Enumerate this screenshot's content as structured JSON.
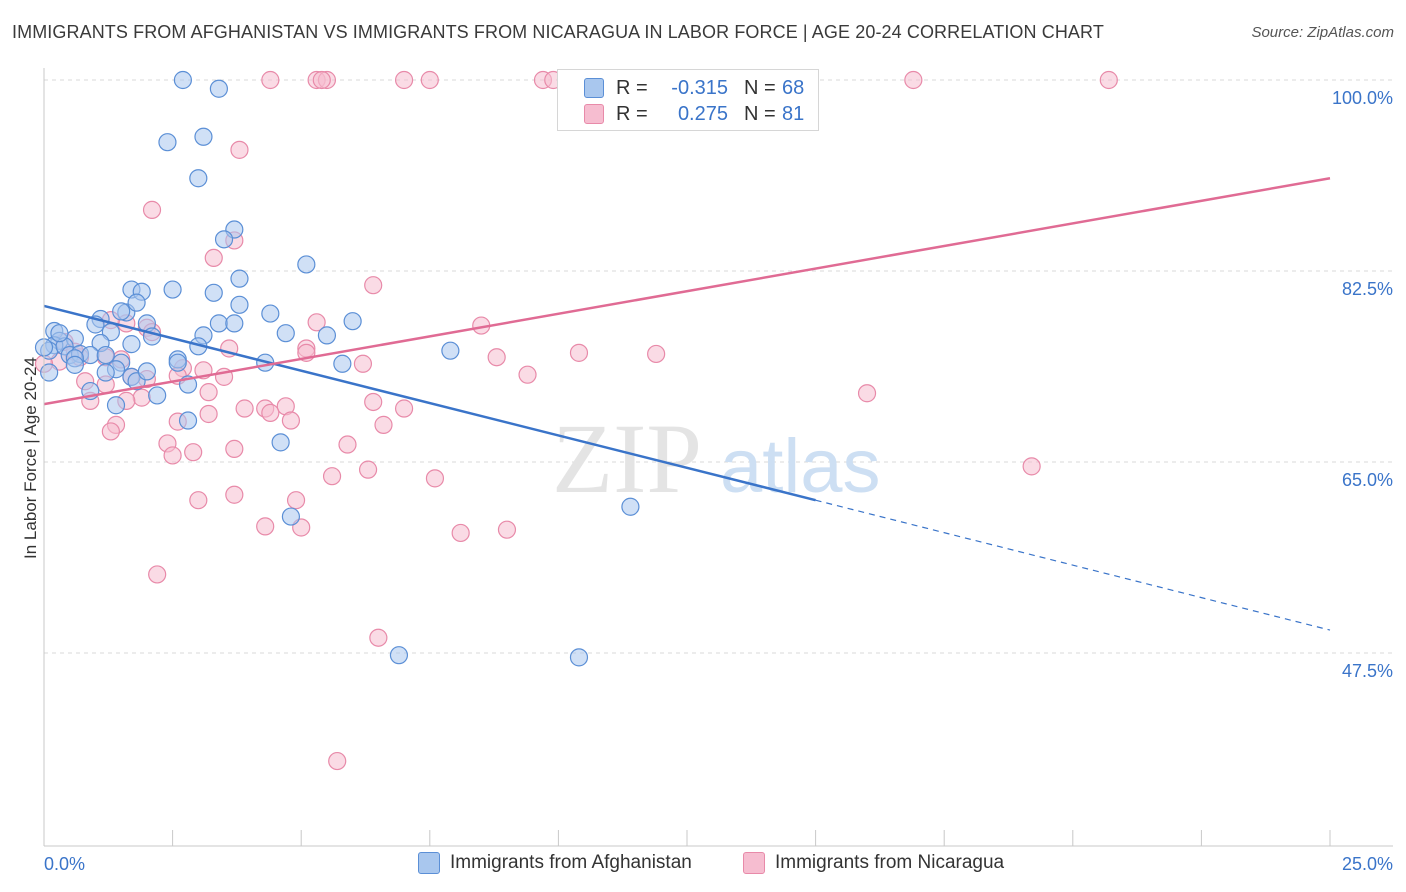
{
  "header": {
    "title": "IMMIGRANTS FROM AFGHANISTAN VS IMMIGRANTS FROM NICARAGUA IN LABOR FORCE | AGE 20-24 CORRELATION CHART",
    "source": "Source: ZipAtlas.com"
  },
  "legend": {
    "r_label": "R =",
    "n_label": "N =",
    "rows": [
      {
        "r": "-0.315",
        "n": "68"
      },
      {
        "r": "0.275",
        "n": "81"
      }
    ]
  },
  "watermark": {
    "zip": "ZIP",
    "atlas": "atlas"
  },
  "colors": {
    "afghanistan_fill": "#a9c7ee",
    "afghanistan_stroke": "#5b8fd6",
    "afghanistan_line": "#3a74c9",
    "nicaragua_fill": "#f6bdd0",
    "nicaragua_stroke": "#e88aa9",
    "nicaragua_line": "#e06b94",
    "tick_label": "#3a74c9",
    "grid": "#d8d8d8"
  },
  "chart_data": {
    "type": "scatter",
    "title": "IMMIGRANTS FROM AFGHANISTAN VS IMMIGRANTS FROM NICARAGUA IN LABOR FORCE | AGE 20-24 CORRELATION CHART",
    "xlabel": "",
    "ylabel": "In Labor Force | Age 20-24",
    "xlim": [
      0,
      25
    ],
    "ylim": [
      30,
      102
    ],
    "x_tick_labels": [
      "0.0%",
      "25.0%"
    ],
    "y_ticks": [
      47.5,
      65.0,
      82.5,
      100.0
    ],
    "y_tick_labels": [
      "47.5%",
      "65.0%",
      "82.5%",
      "100.0%"
    ],
    "grid": true,
    "legend_position": "bottom",
    "series": [
      {
        "name": "Immigrants from Afghanistan",
        "trend": {
          "x": [
            0,
            15.0
          ],
          "y": [
            79.3,
            61.5
          ]
        },
        "trend_extension": {
          "x": [
            15.0,
            25.0
          ],
          "y": [
            61.5,
            49.6
          ]
        },
        "points": [
          [
            2.7,
            100.0
          ],
          [
            3.4,
            99.2
          ],
          [
            2.4,
            94.3
          ],
          [
            3.1,
            94.8
          ],
          [
            3.0,
            91.0
          ],
          [
            3.7,
            86.3
          ],
          [
            3.5,
            85.4
          ],
          [
            5.1,
            83.1
          ],
          [
            3.8,
            81.8
          ],
          [
            2.5,
            80.8
          ],
          [
            1.7,
            80.8
          ],
          [
            1.9,
            80.6
          ],
          [
            3.3,
            80.5
          ],
          [
            3.8,
            79.4
          ],
          [
            1.6,
            78.7
          ],
          [
            1.5,
            78.8
          ],
          [
            4.4,
            78.6
          ],
          [
            1.1,
            78.1
          ],
          [
            1.0,
            77.6
          ],
          [
            2.0,
            77.7
          ],
          [
            3.4,
            77.7
          ],
          [
            3.7,
            77.7
          ],
          [
            6.0,
            77.9
          ],
          [
            0.2,
            77.0
          ],
          [
            1.3,
            76.9
          ],
          [
            4.7,
            76.8
          ],
          [
            3.1,
            76.6
          ],
          [
            5.5,
            76.6
          ],
          [
            2.1,
            76.5
          ],
          [
            0.3,
            76.1
          ],
          [
            0.6,
            76.3
          ],
          [
            0.2,
            75.7
          ],
          [
            0.1,
            75.2
          ],
          [
            1.7,
            75.8
          ],
          [
            0.4,
            75.6
          ],
          [
            1.1,
            75.9
          ],
          [
            3.0,
            75.6
          ],
          [
            0.5,
            74.8
          ],
          [
            0.7,
            74.9
          ],
          [
            0.9,
            74.8
          ],
          [
            0.6,
            74.5
          ],
          [
            1.2,
            74.8
          ],
          [
            7.9,
            75.2
          ],
          [
            2.6,
            74.4
          ],
          [
            4.3,
            74.1
          ],
          [
            2.6,
            74.1
          ],
          [
            1.5,
            74.1
          ],
          [
            0.6,
            73.9
          ],
          [
            1.4,
            73.5
          ],
          [
            1.2,
            73.2
          ],
          [
            0.1,
            73.2
          ],
          [
            1.7,
            72.8
          ],
          [
            1.8,
            72.4
          ],
          [
            2.8,
            72.1
          ],
          [
            0.9,
            71.5
          ],
          [
            2.2,
            71.1
          ],
          [
            1.4,
            70.2
          ],
          [
            2.8,
            68.8
          ],
          [
            4.6,
            66.8
          ],
          [
            4.8,
            60.0
          ],
          [
            11.4,
            60.9
          ],
          [
            6.9,
            47.3
          ],
          [
            10.4,
            47.1
          ],
          [
            0.0,
            75.5
          ],
          [
            0.3,
            76.8
          ],
          [
            2.0,
            73.3
          ],
          [
            5.8,
            74.0
          ],
          [
            1.8,
            79.6
          ]
        ]
      },
      {
        "name": "Immigrants from Nicaragua",
        "trend": {
          "x": [
            0,
            25.0
          ],
          "y": [
            70.3,
            91.0
          ]
        },
        "points": [
          [
            4.4,
            100.0
          ],
          [
            5.3,
            100.0
          ],
          [
            5.5,
            100.0
          ],
          [
            7.0,
            100.0
          ],
          [
            7.5,
            100.0
          ],
          [
            9.7,
            100.0
          ],
          [
            9.9,
            100.0
          ],
          [
            12.2,
            100.0
          ],
          [
            16.9,
            100.0
          ],
          [
            20.7,
            100.0
          ],
          [
            5.4,
            100.0
          ],
          [
            3.8,
            93.6
          ],
          [
            2.1,
            88.1
          ],
          [
            3.7,
            85.3
          ],
          [
            3.3,
            83.7
          ],
          [
            6.4,
            81.2
          ],
          [
            5.3,
            77.8
          ],
          [
            8.5,
            77.5
          ],
          [
            1.6,
            77.7
          ],
          [
            2.0,
            77.3
          ],
          [
            2.1,
            76.9
          ],
          [
            0.4,
            76.0
          ],
          [
            3.6,
            75.4
          ],
          [
            5.1,
            75.4
          ],
          [
            8.8,
            74.6
          ],
          [
            10.4,
            75.0
          ],
          [
            6.2,
            74.0
          ],
          [
            0.3,
            74.2
          ],
          [
            1.5,
            74.4
          ],
          [
            0.7,
            74.6
          ],
          [
            1.2,
            74.6
          ],
          [
            0.6,
            75.1
          ],
          [
            2.7,
            73.6
          ],
          [
            3.1,
            73.4
          ],
          [
            2.6,
            72.9
          ],
          [
            1.7,
            72.8
          ],
          [
            3.5,
            72.8
          ],
          [
            2.0,
            72.6
          ],
          [
            9.4,
            73.0
          ],
          [
            0.8,
            72.4
          ],
          [
            1.2,
            72.1
          ],
          [
            3.2,
            71.4
          ],
          [
            1.9,
            70.9
          ],
          [
            0.9,
            70.6
          ],
          [
            1.6,
            70.6
          ],
          [
            6.4,
            70.5
          ],
          [
            4.3,
            69.9
          ],
          [
            4.7,
            70.1
          ],
          [
            7.0,
            69.9
          ],
          [
            3.9,
            69.9
          ],
          [
            4.4,
            69.5
          ],
          [
            3.2,
            69.4
          ],
          [
            4.8,
            68.8
          ],
          [
            2.6,
            68.7
          ],
          [
            6.6,
            68.4
          ],
          [
            1.4,
            68.4
          ],
          [
            1.3,
            67.8
          ],
          [
            5.9,
            66.6
          ],
          [
            2.4,
            66.7
          ],
          [
            3.7,
            66.2
          ],
          [
            2.9,
            65.9
          ],
          [
            2.5,
            65.6
          ],
          [
            6.3,
            64.3
          ],
          [
            5.6,
            63.7
          ],
          [
            7.6,
            63.5
          ],
          [
            3.7,
            62.0
          ],
          [
            3.0,
            61.5
          ],
          [
            4.9,
            61.5
          ],
          [
            4.3,
            59.1
          ],
          [
            5.0,
            59.0
          ],
          [
            8.1,
            58.5
          ],
          [
            9.0,
            58.8
          ],
          [
            2.2,
            54.7
          ],
          [
            6.5,
            48.9
          ],
          [
            5.7,
            37.6
          ],
          [
            16.0,
            71.3
          ],
          [
            19.2,
            64.6
          ],
          [
            5.1,
            75.0
          ],
          [
            0.0,
            74.0
          ],
          [
            1.3,
            78.0
          ],
          [
            11.9,
            74.9
          ]
        ]
      }
    ]
  },
  "bottom_legend": {
    "items": [
      "Immigrants from Afghanistan",
      "Immigrants from Nicaragua"
    ]
  }
}
